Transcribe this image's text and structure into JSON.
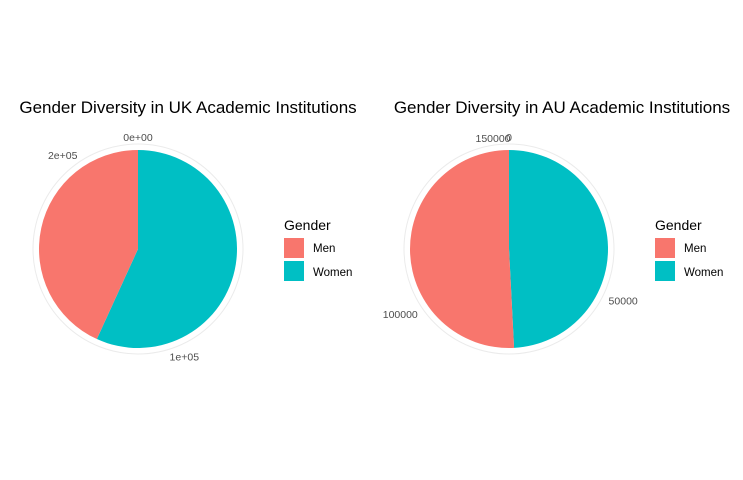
{
  "chart_data": [
    {
      "type": "pie",
      "title": "Gender Diversity in UK Academic Institutions",
      "categories": [
        "Men",
        "Women"
      ],
      "values": [
        95000,
        125000
      ],
      "colors": [
        "#F8766D",
        "#00BFC4"
      ],
      "tick_labels": [
        {
          "label": "0e+00",
          "value": 0
        },
        {
          "label": "1e+05",
          "value": 100000
        },
        {
          "label": "2e+05",
          "value": 200000
        }
      ],
      "legend": {
        "title": "Gender",
        "position": "right"
      }
    },
    {
      "type": "pie",
      "title": "Gender Diversity in AU Academic Institutions",
      "categories": [
        "Men",
        "Women"
      ],
      "values": [
        78000,
        75500
      ],
      "colors": [
        "#F8766D",
        "#00BFC4"
      ],
      "tick_labels": [
        {
          "label": "0",
          "value": 0
        },
        {
          "label": "50000",
          "value": 50000
        },
        {
          "label": "100000",
          "value": 100000
        },
        {
          "label": "150000",
          "value": 150000
        }
      ],
      "legend": {
        "title": "Gender",
        "position": "right"
      }
    }
  ]
}
